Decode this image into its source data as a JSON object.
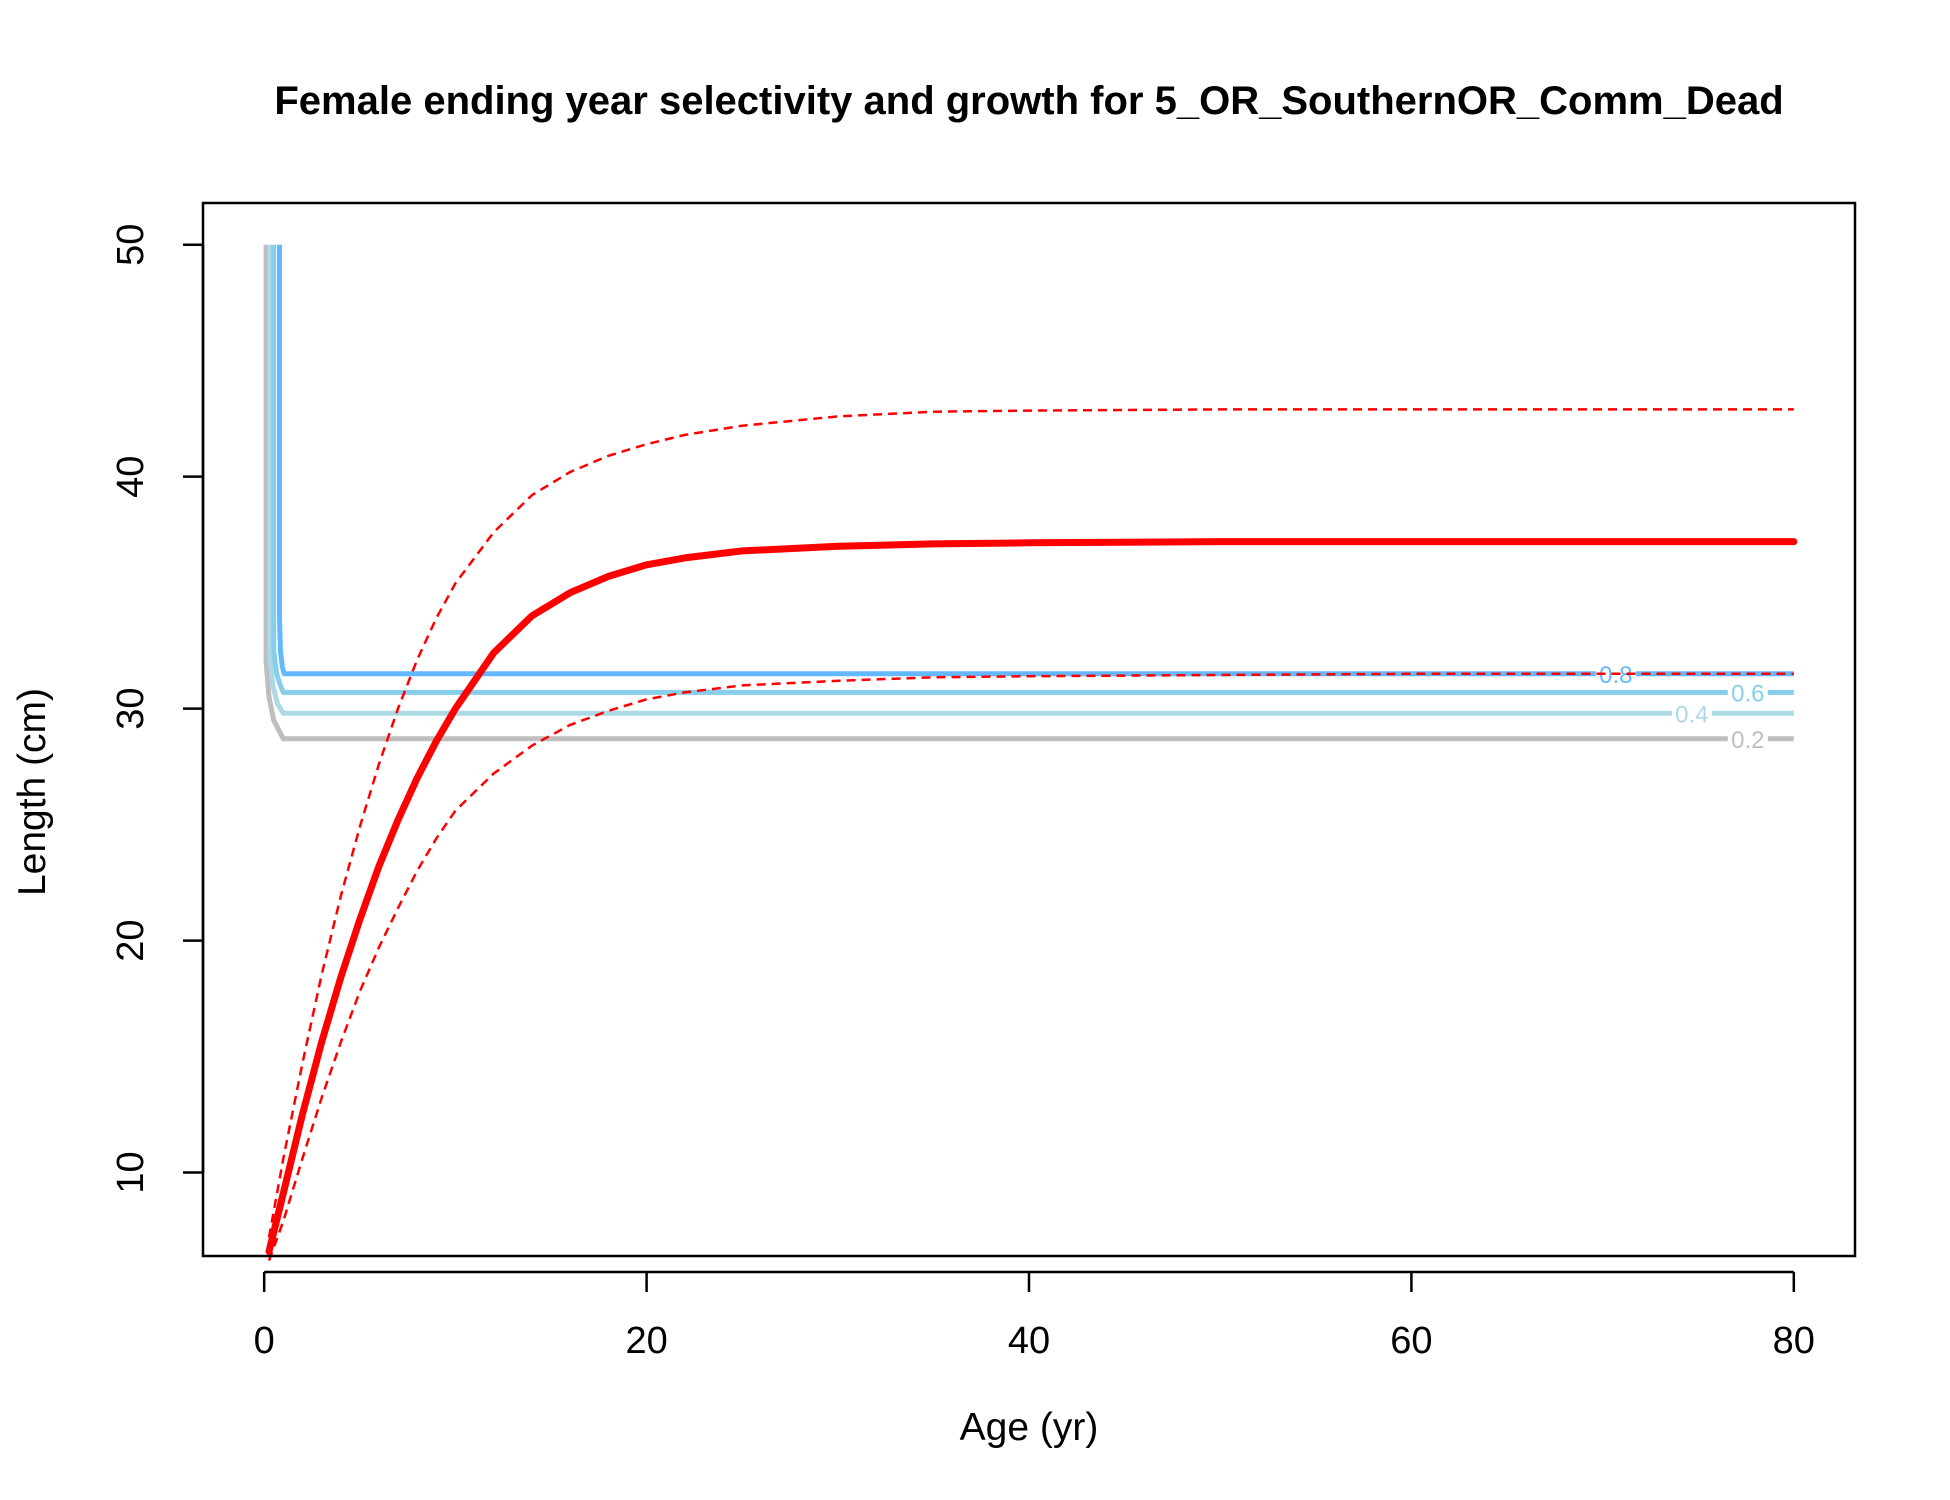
{
  "chart_data": {
    "type": "line",
    "title": "Female ending year selectivity and growth for 5_OR_SouthernOR_Comm_Dead",
    "xlabel": "Age (yr)",
    "ylabel": "Length (cm)",
    "xlim": [
      -3.2,
      83.2
    ],
    "ylim": [
      6.4,
      51.8
    ],
    "x_ticks": [
      0,
      20,
      40,
      60,
      80
    ],
    "y_ticks": [
      10,
      20,
      30,
      40,
      50
    ],
    "grid": false,
    "legend": "none",
    "colors": {
      "growth": "#ff0000",
      "contour_0_2": "#bebebe",
      "contour_0_4": "#add8e6",
      "contour_0_6": "#87ceeb",
      "contour_0_8": "#63b8ff"
    },
    "growth_curve": {
      "mean": {
        "x": [
          0.25,
          1,
          2,
          3,
          4,
          5,
          6,
          7,
          8,
          9,
          10,
          12,
          14,
          16,
          18,
          20,
          22,
          25,
          30,
          35,
          40,
          50,
          60,
          70,
          80
        ],
        "y": [
          6.6,
          9.1,
          12.5,
          15.6,
          18.4,
          20.9,
          23.2,
          25.2,
          27.0,
          28.6,
          30.0,
          32.4,
          34.0,
          35.0,
          35.7,
          36.2,
          36.5,
          36.8,
          37.0,
          37.1,
          37.15,
          37.2,
          37.2,
          37.2,
          37.2
        ]
      },
      "upper": {
        "x": [
          0.25,
          1,
          2,
          3,
          4,
          5,
          6,
          7,
          8,
          9,
          10,
          12,
          14,
          16,
          18,
          20,
          22,
          25,
          30,
          35,
          40,
          50,
          60,
          70,
          80
        ],
        "y": [
          7.2,
          10.6,
          14.7,
          18.5,
          21.9,
          24.9,
          27.6,
          30.0,
          32.1,
          33.9,
          35.4,
          37.6,
          39.2,
          40.2,
          40.9,
          41.4,
          41.8,
          42.2,
          42.6,
          42.8,
          42.85,
          42.9,
          42.9,
          42.9,
          42.9
        ]
      },
      "lower": {
        "x": [
          0.25,
          1,
          2,
          3,
          4,
          5,
          6,
          7,
          8,
          9,
          10,
          12,
          14,
          16,
          18,
          20,
          22,
          25,
          30,
          35,
          40,
          50,
          60,
          70,
          80
        ],
        "y": [
          6.2,
          7.9,
          10.6,
          13.2,
          15.6,
          17.8,
          19.7,
          21.4,
          23.0,
          24.4,
          25.6,
          27.2,
          28.4,
          29.3,
          29.9,
          30.4,
          30.7,
          31.0,
          31.2,
          31.35,
          31.4,
          31.45,
          31.5,
          31.5,
          31.5
        ]
      }
    },
    "selectivity_contours": [
      {
        "level": "0.2",
        "label": "0.2",
        "x": [
          0.1,
          0.1,
          0.25,
          0.5,
          1.0,
          80
        ],
        "y": [
          50,
          32.0,
          30.5,
          29.5,
          28.7,
          28.7
        ]
      },
      {
        "level": "0.4",
        "label": "0.4",
        "x": [
          0.3,
          0.3,
          0.45,
          0.7,
          1.0,
          80
        ],
        "y": [
          50,
          32.2,
          31.0,
          30.2,
          29.8,
          29.8
        ]
      },
      {
        "level": "0.6",
        "label": "0.6",
        "x": [
          0.5,
          0.5,
          0.65,
          0.85,
          1.0,
          80
        ],
        "y": [
          50,
          32.5,
          31.5,
          31.0,
          30.7,
          30.7
        ]
      },
      {
        "level": "0.8",
        "label": "0.8",
        "x": [
          0.8,
          0.8,
          0.85,
          0.95,
          1.05,
          80
        ],
        "y": [
          50,
          34.0,
          32.5,
          31.8,
          31.5,
          31.5
        ]
      }
    ]
  }
}
